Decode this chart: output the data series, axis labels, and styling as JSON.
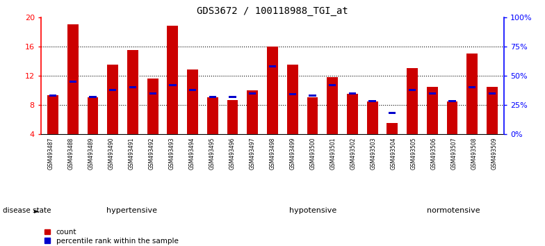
{
  "title": "GDS3672 / 100118988_TGI_at",
  "samples": [
    "GSM493487",
    "GSM493488",
    "GSM493489",
    "GSM493490",
    "GSM493491",
    "GSM493492",
    "GSM493493",
    "GSM493494",
    "GSM493495",
    "GSM493496",
    "GSM493497",
    "GSM493498",
    "GSM493499",
    "GSM493500",
    "GSM493501",
    "GSM493502",
    "GSM493503",
    "GSM493504",
    "GSM493505",
    "GSM493506",
    "GSM493507",
    "GSM493508",
    "GSM493509"
  ],
  "counts": [
    9.3,
    19.0,
    9.0,
    13.5,
    15.5,
    11.6,
    18.8,
    12.8,
    9.0,
    8.7,
    10.0,
    16.0,
    13.5,
    9.0,
    11.8,
    9.5,
    8.5,
    5.5,
    13.0,
    10.5,
    8.5,
    15.0,
    10.5
  ],
  "percentiles": [
    33,
    45,
    32,
    38,
    40,
    35,
    42,
    38,
    32,
    32,
    35,
    58,
    34,
    33,
    42,
    35,
    28,
    18,
    38,
    35,
    28,
    40,
    35
  ],
  "groups": [
    {
      "label": "hypertensive",
      "start": 0,
      "end": 9,
      "color": "#c8f5c8"
    },
    {
      "label": "hypotensive",
      "start": 9,
      "end": 18,
      "color": "#80e880"
    },
    {
      "label": "normotensive",
      "start": 18,
      "end": 23,
      "color": "#50d050"
    }
  ],
  "ylim_left": [
    4,
    20
  ],
  "ylim_right": [
    0,
    100
  ],
  "yticks_left": [
    4,
    8,
    12,
    16,
    20
  ],
  "yticks_right": [
    0,
    25,
    50,
    75,
    100
  ],
  "bar_color": "#cc0000",
  "blue_color": "#0000cc",
  "background_color": "#ffffff",
  "bar_width": 0.55
}
